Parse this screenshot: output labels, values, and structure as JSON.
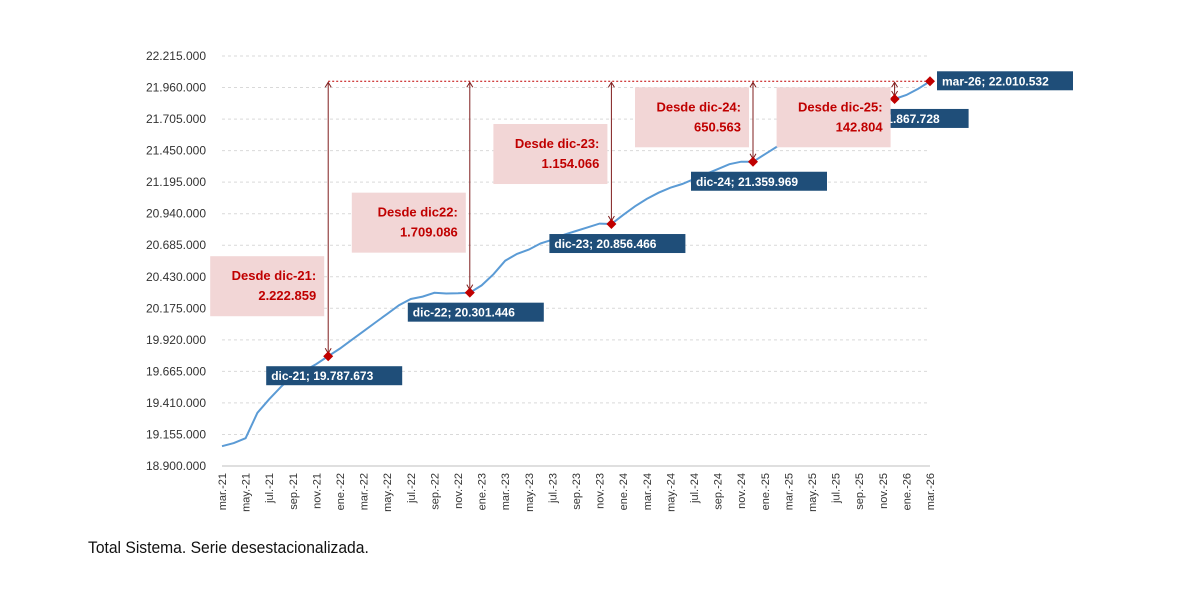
{
  "caption": "Total Sistema. Serie desestacionalizada.",
  "colors": {
    "line": "#5b9bd5",
    "marker": "#c00000",
    "label_box": "#1f4e79",
    "delta_box": "#f2d6d6",
    "delta_text": "#c00000",
    "grid": "#d9d9d9"
  },
  "chart_data": {
    "type": "line",
    "ylim": [
      18900000,
      22215000
    ],
    "y_ticks": [
      "22.215.000",
      "21.960.000",
      "21.705.000",
      "21.450.000",
      "21.195.000",
      "20.940.000",
      "20.685.000",
      "20.430.000",
      "20.175.000",
      "19.920.000",
      "19.665.000",
      "19.410.000",
      "19.155.000",
      "18.900.000"
    ],
    "x_tick_labels": [
      "mar.-21",
      "may.-21",
      "jul.-21",
      "sep.-21",
      "nov.-21",
      "ene.-22",
      "mar.-22",
      "may.-22",
      "jul.-22",
      "sep.-22",
      "nov.-22",
      "ene.-23",
      "mar.-23",
      "may.-23",
      "jul.-23",
      "sep.-23",
      "nov.-23",
      "ene.-24",
      "mar.-24",
      "may.-24",
      "jul.-24",
      "sep.-24",
      "nov.-24",
      "ene.-25",
      "mar.-25",
      "may.-25",
      "jul.-25",
      "sep.-25",
      "nov.-25",
      "ene.-26",
      "mar.-26"
    ],
    "months": [
      "mar-21",
      "abr-21",
      "may-21",
      "jun-21",
      "jul-21",
      "ago-21",
      "sep-21",
      "oct-21",
      "nov-21",
      "dic-21",
      "ene-22",
      "feb-22",
      "mar-22",
      "abr-22",
      "may-22",
      "jun-22",
      "jul-22",
      "ago-22",
      "sep-22",
      "oct-22",
      "nov-22",
      "dic-22",
      "ene-23",
      "feb-23",
      "mar-23",
      "abr-23",
      "may-23",
      "jun-23",
      "jul-23",
      "ago-23",
      "sep-23",
      "oct-23",
      "nov-23",
      "dic-23",
      "ene-24",
      "feb-24",
      "mar-24",
      "abr-24",
      "may-24",
      "jun-24",
      "jul-24",
      "ago-24",
      "sep-24",
      "oct-24",
      "nov-24",
      "dic-24",
      "ene-25",
      "feb-25",
      "mar-25",
      "abr-25",
      "may-25",
      "jun-25",
      "jul-25",
      "ago-25",
      "sep-25",
      "oct-25",
      "nov-25",
      "dic-25",
      "ene-26",
      "feb-26",
      "mar-26"
    ],
    "values": [
      19060000,
      19085000,
      19125000,
      19330000,
      19440000,
      19540000,
      19630000,
      19670000,
      19725000,
      19787673,
      19850000,
      19920000,
      19990000,
      20060000,
      20130000,
      20200000,
      20250000,
      20270000,
      20300000,
      20295000,
      20296000,
      20301446,
      20360000,
      20450000,
      20560000,
      20615000,
      20650000,
      20700000,
      20730000,
      20770000,
      20800000,
      20830000,
      20860000,
      20856466,
      20930000,
      21000000,
      21060000,
      21110000,
      21150000,
      21180000,
      21220000,
      21260000,
      21300000,
      21340000,
      21360000,
      21359969,
      21420000,
      21480000,
      21530000,
      21580000,
      21630000,
      21670000,
      21720000,
      21770000,
      21810000,
      21850000,
      21870000,
      21867728,
      21900000,
      21950000,
      22010532
    ],
    "markers": [
      {
        "month": "dic-21",
        "value": 19787673,
        "label": "dic-21; 19.787.673"
      },
      {
        "month": "dic-22",
        "value": 20301446,
        "label": "dic-22; 20.301.446"
      },
      {
        "month": "dic-23",
        "value": 20856466,
        "label": "dic-23; 20.856.466"
      },
      {
        "month": "dic-24",
        "value": 21359969,
        "label": "dic-24; 21.359.969"
      },
      {
        "month": "dic-25",
        "value": 21867728,
        "label": "dic-25; 21.867.728"
      },
      {
        "month": "mar-26",
        "value": 22010532,
        "label": "mar-26; 22.010.532"
      }
    ],
    "deltas": [
      {
        "from": "dic-21",
        "title": "Desde dic-21:",
        "value": "2.222.859"
      },
      {
        "from": "dic-22",
        "title": "Desde dic22:",
        "value": "1.709.086"
      },
      {
        "from": "dic-23",
        "title": "Desde dic-23:",
        "value": "1.154.066"
      },
      {
        "from": "dic-24",
        "title": "Desde dic-24:",
        "value": "650.563"
      },
      {
        "from": "dic-25",
        "title": "Desde dic-25:",
        "value": "142.804"
      }
    ]
  }
}
